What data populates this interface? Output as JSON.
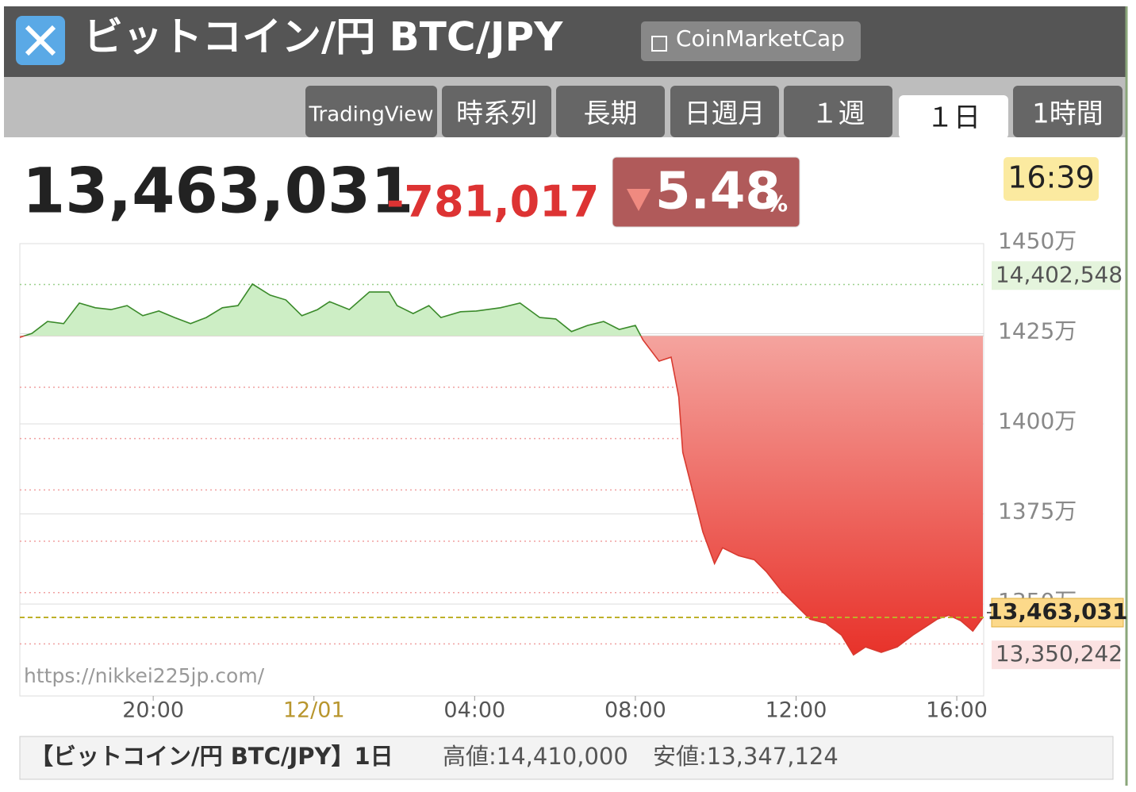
{
  "header": {
    "title": "ビットコイン/円 BTC/JPY",
    "source": "CoinMarketCap"
  },
  "tabs": [
    "TradingView",
    "時系列",
    "長期",
    "日週月",
    "１週",
    "１日",
    "1時間"
  ],
  "active_tab": 5,
  "quote": {
    "price": "13,463,031",
    "change": "-781,017",
    "change_pct": 5.48,
    "pct_unit": "%",
    "time": "16:39"
  },
  "watermark": "https://nikkei225jp.com/",
  "footer": {
    "name": "【ビットコイン/円 BTC/JPY】1日",
    "high": "高値:14,410,000",
    "low": "安値:13,347,124"
  },
  "chart_data": {
    "type": "area",
    "x": [
      -7.32,
      -7.02,
      -6.63,
      -6.23,
      -5.84,
      -5.44,
      -5.05,
      -4.65,
      -4.26,
      -3.86,
      -3.47,
      -3.07,
      -2.68,
      -2.28,
      -1.89,
      -1.53,
      -1.09,
      -0.7,
      -0.3,
      0.09,
      0.39,
      0.88,
      1.38,
      1.87,
      2.07,
      2.47,
      2.86,
      3.16,
      3.65,
      4.04,
      4.64,
      5.13,
      5.62,
      6.02,
      6.41,
      6.81,
      7.21,
      7.6,
      8.0,
      8.19,
      8.59,
      8.89,
      9.08,
      9.18,
      9.48,
      9.68,
      9.97,
      10.17,
      10.57,
      10.96,
      11.26,
      11.65,
      11.95,
      12.35,
      12.74,
      13.13,
      13.43,
      13.73,
      14.12,
      14.52,
      14.91,
      15.21,
      15.51,
      15.8,
      16.1,
      16.4,
      16.65
    ],
    "values": [
      14240000,
      14251000,
      14284000,
      14278000,
      14335000,
      14322000,
      14317000,
      14328000,
      14300000,
      14313000,
      14295000,
      14278000,
      14295000,
      14322000,
      14328000,
      14388000,
      14357000,
      14344000,
      14300000,
      14317000,
      14339000,
      14317000,
      14366000,
      14366000,
      14328000,
      14306000,
      14328000,
      14295000,
      14311000,
      14313000,
      14322000,
      14335000,
      14295000,
      14291000,
      14256000,
      14273000,
      14284000,
      14262000,
      14273000,
      14233000,
      14174000,
      14185000,
      14075000,
      13921000,
      13789000,
      13700000,
      13612000,
      13656000,
      13634000,
      13623000,
      13590000,
      13535000,
      13502000,
      13458000,
      13447000,
      13414000,
      13359000,
      13381000,
      13366000,
      13381000,
      13414000,
      13436000,
      13458000,
      13469000,
      13454000,
      13425000,
      13463031
    ],
    "baseline": 14244048,
    "up_color": "#3a8a2a",
    "up_fill": "#cdeec5",
    "down_color": "#d83a30",
    "down_fill_top": "#f6b6b1",
    "down_fill_bottom": "#e8322a",
    "percent_lines": [
      1,
      -1,
      -2,
      -3,
      -4,
      -5,
      -6
    ],
    "xlim": [
      -7.32,
      16.67
    ],
    "xticks": [
      {
        "value": -4,
        "label": "20:00"
      },
      {
        "value": 0,
        "label": "12/01"
      },
      {
        "value": 4,
        "label": "04:00"
      },
      {
        "value": 8,
        "label": "08:00"
      },
      {
        "value": 12,
        "label": "12:00"
      },
      {
        "value": 16,
        "label": "16:00"
      }
    ],
    "date_tick_color": "#b8962e",
    "ylim": [
      13245000,
      14500000
    ],
    "yticks": [
      {
        "value": 14500000,
        "label": "1450万"
      },
      {
        "value": 14250000,
        "label": "1425万"
      },
      {
        "value": 14000000,
        "label": "1400万"
      },
      {
        "value": 13750000,
        "label": "1375万"
      },
      {
        "value": 13500000,
        "label": "1350万"
      }
    ],
    "grid": true,
    "markers": [
      {
        "value": 14402548,
        "label": "14,402,548",
        "color": "#e4f4dc"
      },
      {
        "value": 13350242,
        "label": "13,350,242",
        "color": "#fbe2e2"
      },
      {
        "value": 13463031,
        "label": "13,463,031",
        "color": "#fcd98a",
        "line_color": "#bdb029"
      }
    ]
  }
}
